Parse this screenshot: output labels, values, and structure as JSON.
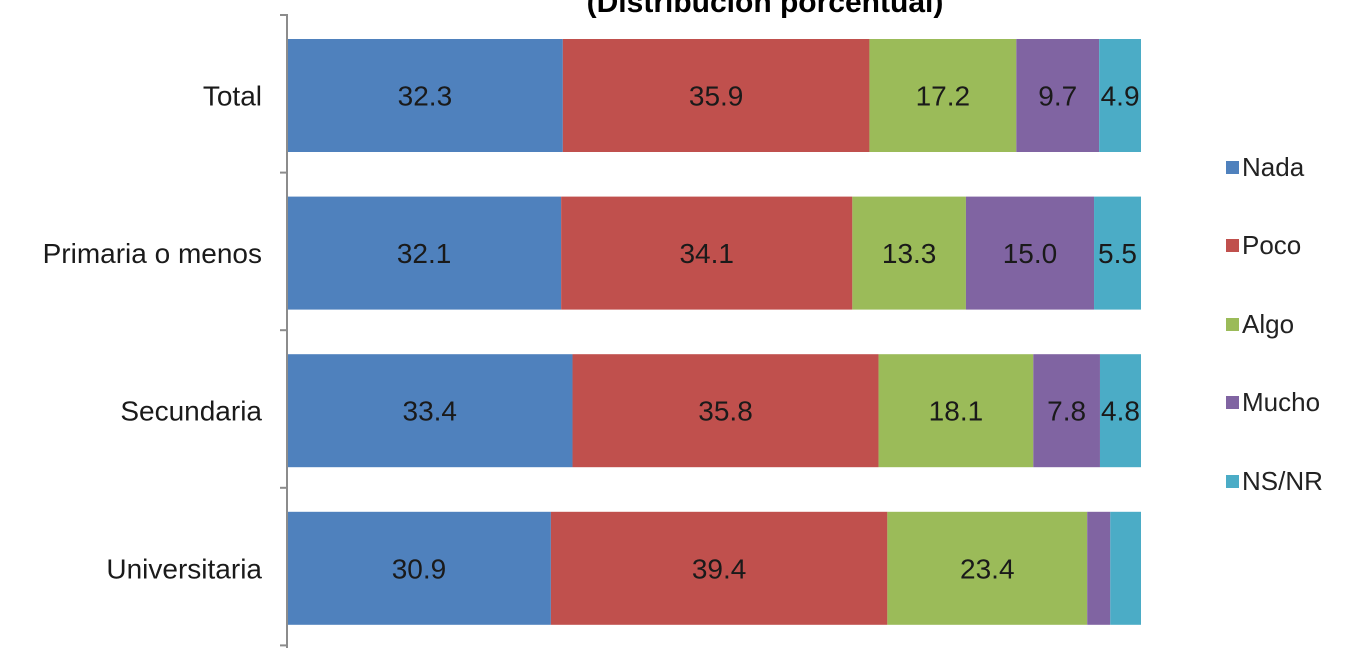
{
  "chart_data": {
    "type": "bar",
    "orientation": "horizontal",
    "stacked": true,
    "title": "(Distribución porcentual)",
    "categories": [
      "Total",
      "Primaria o menos",
      "Secundaria",
      "Universitaria"
    ],
    "series": [
      {
        "name": "Nada",
        "color": "#4f81bd",
        "values": [
          32.3,
          32.1,
          33.4,
          30.9
        ],
        "labels": [
          "32.3",
          "32.1",
          "33.4",
          "30.9"
        ]
      },
      {
        "name": "Poco",
        "color": "#c0504d",
        "values": [
          35.9,
          34.1,
          35.8,
          39.4
        ],
        "labels": [
          "35.9",
          "34.1",
          "35.8",
          "39.4"
        ]
      },
      {
        "name": "Algo",
        "color": "#9bbb59",
        "values": [
          17.2,
          13.3,
          18.1,
          23.4
        ],
        "labels": [
          "17.2",
          "13.3",
          "18.1",
          "23.4"
        ]
      },
      {
        "name": "Mucho",
        "color": "#8064a2",
        "values": [
          9.7,
          15.0,
          7.8,
          2.7
        ],
        "labels": [
          "9.7",
          "15.0",
          "7.8",
          ""
        ]
      },
      {
        "name": "NS/NR",
        "color": "#4bacc6",
        "values": [
          4.9,
          5.5,
          4.8,
          3.6
        ],
        "labels": [
          "4.9",
          "5.5",
          "4.8",
          ""
        ]
      }
    ],
    "xlim": [
      0,
      100
    ],
    "legend_position": "right",
    "grid": false
  }
}
